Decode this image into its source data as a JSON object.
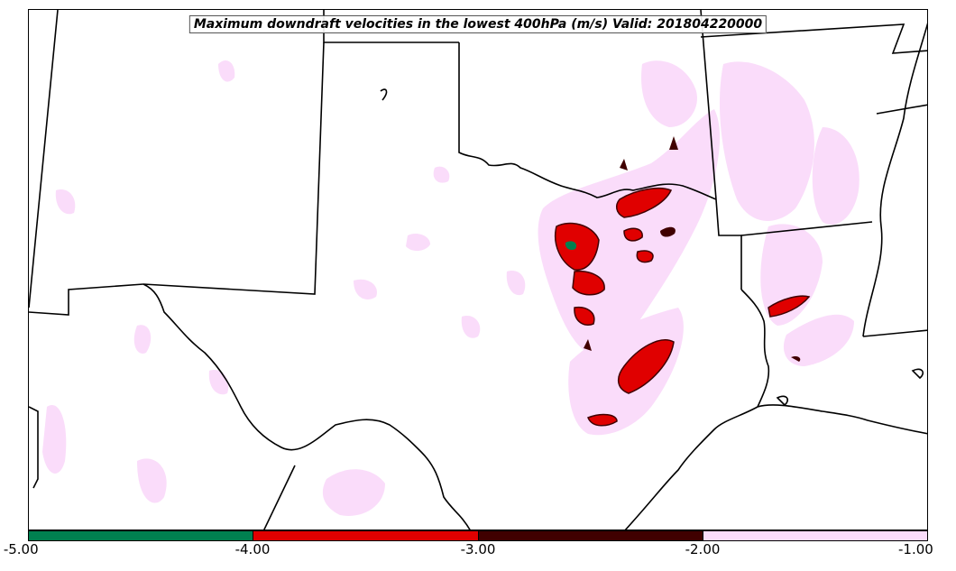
{
  "title": "Maximum downdraft velocities in the lowest 400hPa (m/s) Valid: 201804220000",
  "colorbar": {
    "segments": [
      {
        "from": -5.0,
        "to": -4.0,
        "color": "#008050"
      },
      {
        "from": -4.0,
        "to": -3.0,
        "color": "#e00000"
      },
      {
        "from": -3.0,
        "to": -2.0,
        "color": "#400000"
      },
      {
        "from": -2.0,
        "to": -1.0,
        "color": "#fadcfa"
      }
    ],
    "ticks": [
      "-5.00",
      "-4.00",
      "-3.00",
      "-2.00",
      "-1.00"
    ]
  },
  "map": {
    "region": "Southern Plains (Texas, Oklahoma, Louisiana, Arkansas)",
    "colors": {
      "boundary": "#000000",
      "light": "#fadcfa",
      "strong": "#e00000",
      "dark": "#400000"
    }
  }
}
